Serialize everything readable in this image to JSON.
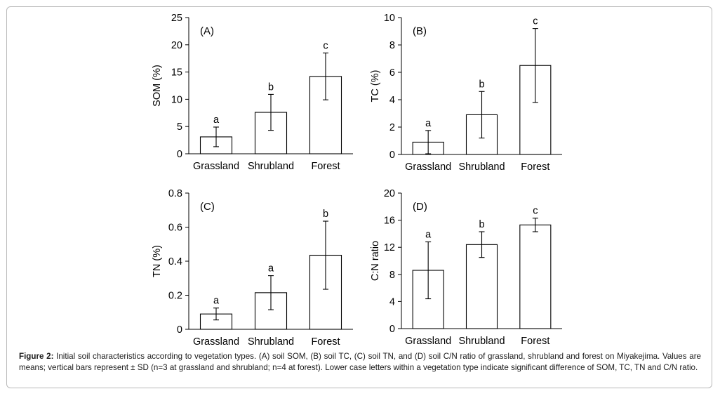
{
  "chart_data": [
    {
      "type": "bar",
      "panel_label": "(A)",
      "ylabel": "SOM (%)",
      "categories": [
        "Grassland",
        "Shrubland",
        "Forest"
      ],
      "values": [
        3.1,
        7.6,
        14.2
      ],
      "errors": [
        1.8,
        3.3,
        4.3
      ],
      "letters": [
        "a",
        "b",
        "c"
      ],
      "ylim": [
        0,
        25
      ],
      "yticks": [
        0,
        5,
        10,
        15,
        20,
        25
      ],
      "ytick_labels": [
        "0",
        "5",
        "10",
        "15",
        "20",
        "25"
      ]
    },
    {
      "type": "bar",
      "panel_label": "(B)",
      "ylabel": "TC (%)",
      "categories": [
        "Grassland",
        "Shrubland",
        "Forest"
      ],
      "values": [
        0.9,
        2.9,
        6.5
      ],
      "errors": [
        0.85,
        1.7,
        2.7
      ],
      "letters": [
        "a",
        "b",
        "c"
      ],
      "ylim": [
        0,
        10
      ],
      "yticks": [
        0,
        2,
        4,
        6,
        8,
        10
      ],
      "ytick_labels": [
        "0",
        "2",
        "4",
        "6",
        "8",
        "10"
      ]
    },
    {
      "type": "bar",
      "panel_label": "(C)",
      "ylabel": "TN (%)",
      "categories": [
        "Grassland",
        "Shrubland",
        "Forest"
      ],
      "values": [
        0.09,
        0.215,
        0.435
      ],
      "errors": [
        0.035,
        0.1,
        0.2
      ],
      "letters": [
        "a",
        "a",
        "b"
      ],
      "ylim": [
        0,
        0.8
      ],
      "yticks": [
        0,
        0.2,
        0.4,
        0.6,
        0.8
      ],
      "ytick_labels": [
        "0",
        "0.2",
        "0.4",
        "0.6",
        "0.8"
      ]
    },
    {
      "type": "bar",
      "panel_label": "(D)",
      "ylabel": "C:N ratio",
      "categories": [
        "Grassland",
        "Shrubland",
        "Forest"
      ],
      "values": [
        8.6,
        12.4,
        15.3
      ],
      "errors": [
        4.2,
        1.9,
        1.0
      ],
      "letters": [
        "a",
        "b",
        "c"
      ],
      "ylim": [
        0,
        20
      ],
      "yticks": [
        0,
        4,
        8,
        12,
        16,
        20
      ],
      "ytick_labels": [
        "0",
        "4",
        "8",
        "12",
        "16",
        "20"
      ]
    }
  ],
  "caption": {
    "label": "Figure 2:",
    "text": " Initial soil characteristics according to vegetation types. (A) soil SOM, (B) soil TC, (C) soil TN, and (D) soil C/N ratio of grassland, shrubland and forest on Miyakejima. Values are means; vertical bars represent ± SD (n=3 at grassland and shrubland; n=4 at forest). Lower case letters within a vegetation type indicate significant difference of SOM, TC, TN and C/N ratio."
  }
}
